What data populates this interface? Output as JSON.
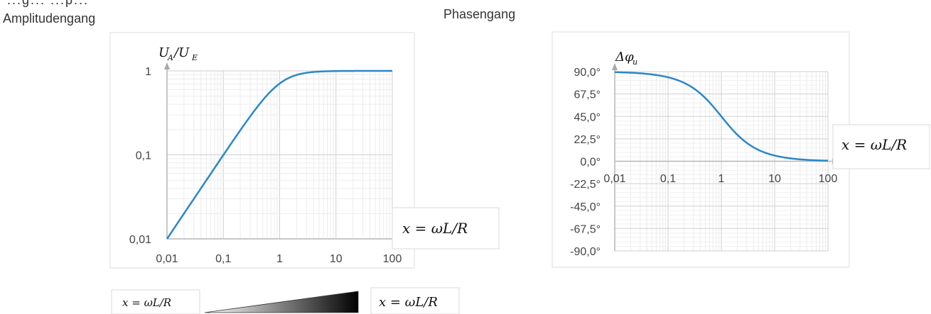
{
  "page": {
    "top_clipped_text": "...g... ...p...",
    "amplitude_title": "Amplitudengang",
    "phase_title": "Phasengang"
  },
  "legend_bar": {
    "left_label": "x = ωL/R",
    "right_label": "x = ωL/R"
  },
  "chart_data": [
    {
      "type": "line",
      "title": "Amplitudengang",
      "xlabel": "x = ωL/R",
      "ylabel": "U_A/U_E",
      "xscale": "log",
      "yscale": "log",
      "xlim": [
        0.01,
        100
      ],
      "ylim": [
        0.01,
        1
      ],
      "x_ticks": [
        "0,01",
        "0,1",
        "1",
        "10",
        "100"
      ],
      "y_ticks": [
        "0,01",
        "0,1",
        "1"
      ],
      "grid": true,
      "series": [
        {
          "color": "#2a87c9",
          "x": [
            0.01,
            0.02,
            0.05,
            0.1,
            0.2,
            0.5,
            1,
            2,
            5,
            10,
            20,
            50,
            100
          ],
          "y": [
            0.01,
            0.02,
            0.05,
            0.1,
            0.196,
            0.447,
            0.707,
            0.894,
            0.981,
            0.995,
            0.999,
            1.0,
            1.0
          ]
        }
      ]
    },
    {
      "type": "line",
      "title": "Phasengang",
      "xlabel": "x = ωL/R",
      "ylabel": "Δφ_u",
      "xscale": "log",
      "xlim": [
        0.01,
        100
      ],
      "ylim": [
        -90,
        90
      ],
      "x_ticks": [
        "0,01",
        "0,1",
        "1",
        "10",
        "100"
      ],
      "y_ticks": [
        "90,0°",
        "67,5°",
        "45,0°",
        "22,5°",
        "0,0°",
        "-22,5°",
        "-45,0°",
        "-67,5°",
        "-90,0°"
      ],
      "y_tick_values": [
        90,
        67.5,
        45,
        22.5,
        0,
        -22.5,
        -45,
        -67.5,
        -90
      ],
      "grid": true,
      "series": [
        {
          "color": "#2a87c9",
          "x": [
            0.01,
            0.02,
            0.05,
            0.1,
            0.2,
            0.5,
            1,
            2,
            5,
            10,
            20,
            50,
            100
          ],
          "y": [
            89.4,
            88.9,
            87.1,
            84.3,
            78.7,
            63.4,
            45.0,
            26.6,
            11.3,
            5.7,
            2.9,
            1.1,
            0.6
          ]
        }
      ]
    }
  ]
}
